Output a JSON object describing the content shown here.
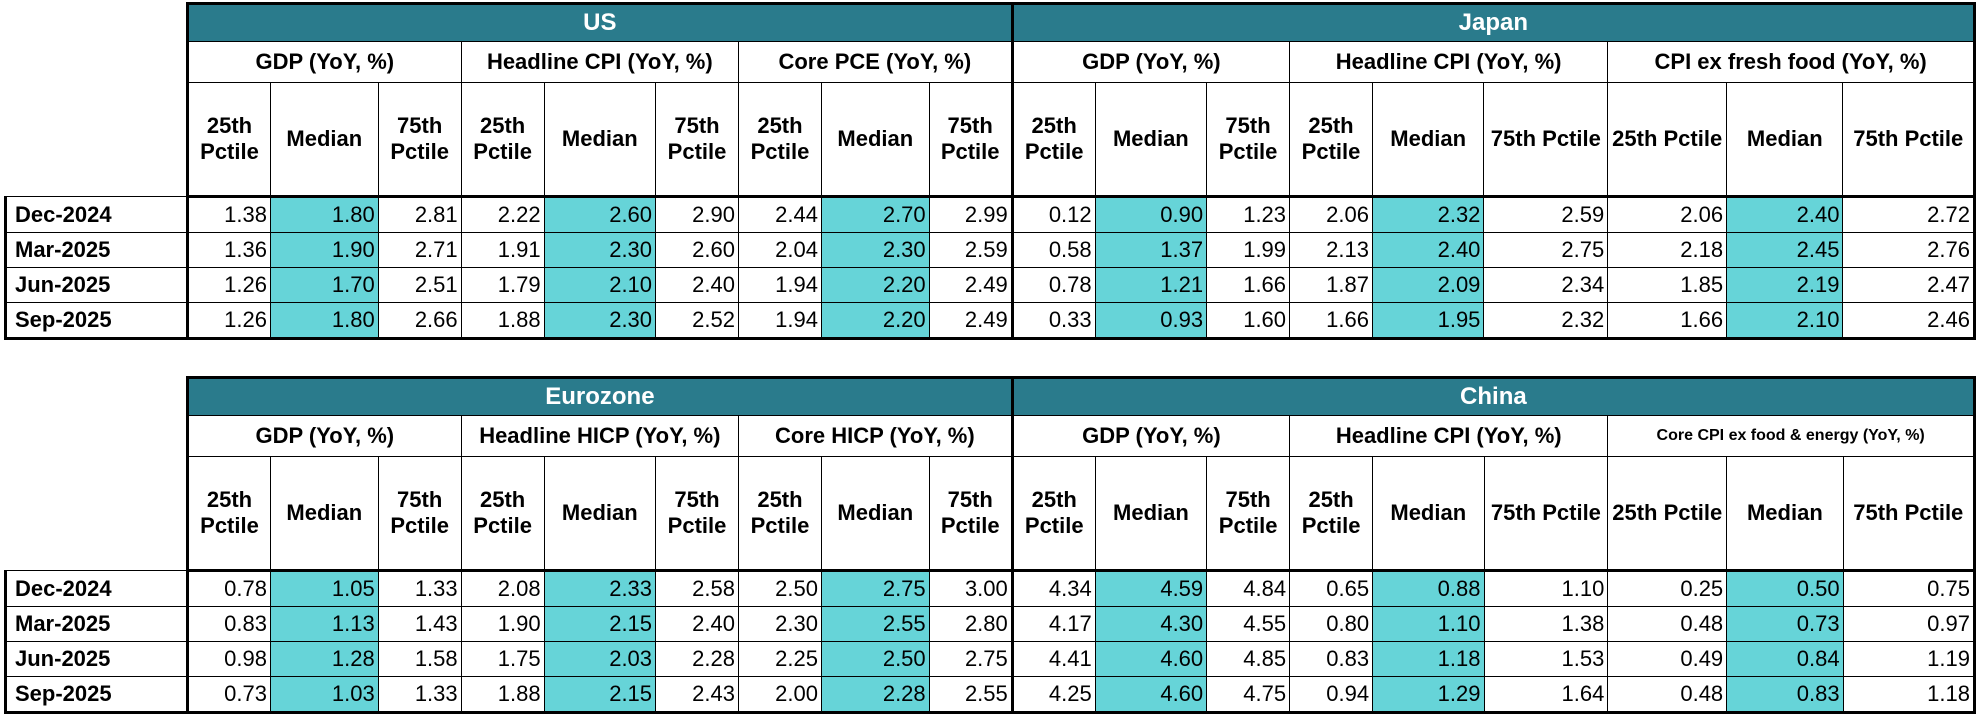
{
  "tables": [
    {
      "regions": [
        {
          "name": "US",
          "metrics": [
            "GDP (YoY, %)",
            "Headline CPI (YoY, %)",
            "Core PCE (YoY, %)"
          ]
        },
        {
          "name": "Japan",
          "metrics": [
            "GDP (YoY, %)",
            "Headline CPI (YoY, %)",
            "CPI ex fresh food (YoY, %)"
          ]
        }
      ],
      "sub_headers": [
        "25th Pctile",
        "Median",
        "75th Pctile"
      ],
      "rows": [
        {
          "label": "Dec-2024",
          "values": [
            "1.38",
            "1.80",
            "2.81",
            "2.22",
            "2.60",
            "2.90",
            "2.44",
            "2.70",
            "2.99",
            "0.12",
            "0.90",
            "1.23",
            "2.06",
            "2.32",
            "2.59",
            "2.06",
            "2.40",
            "2.72"
          ]
        },
        {
          "label": "Mar-2025",
          "values": [
            "1.36",
            "1.90",
            "2.71",
            "1.91",
            "2.30",
            "2.60",
            "2.04",
            "2.30",
            "2.59",
            "0.58",
            "1.37",
            "1.99",
            "2.13",
            "2.40",
            "2.75",
            "2.18",
            "2.45",
            "2.76"
          ]
        },
        {
          "label": "Jun-2025",
          "values": [
            "1.26",
            "1.70",
            "2.51",
            "1.79",
            "2.10",
            "2.40",
            "1.94",
            "2.20",
            "2.49",
            "0.78",
            "1.21",
            "1.66",
            "1.87",
            "2.09",
            "2.34",
            "1.85",
            "2.19",
            "2.47"
          ]
        },
        {
          "label": "Sep-2025",
          "values": [
            "1.26",
            "1.80",
            "2.66",
            "1.88",
            "2.30",
            "2.52",
            "1.94",
            "2.20",
            "2.49",
            "0.33",
            "0.93",
            "1.60",
            "1.66",
            "1.95",
            "2.32",
            "1.66",
            "2.10",
            "2.46"
          ]
        }
      ]
    },
    {
      "regions": [
        {
          "name": "Eurozone",
          "metrics": [
            "GDP (YoY, %)",
            "Headline HICP (YoY, %)",
            "Core HICP (YoY, %)"
          ]
        },
        {
          "name": "China",
          "metrics": [
            "GDP (YoY, %)",
            "Headline CPI (YoY, %)",
            "Core CPI ex food & energy (YoY, %)"
          ]
        }
      ],
      "sub_headers": [
        "25th Pctile",
        "Median",
        "75th Pctile"
      ],
      "rows": [
        {
          "label": "Dec-2024",
          "values": [
            "0.78",
            "1.05",
            "1.33",
            "2.08",
            "2.33",
            "2.58",
            "2.50",
            "2.75",
            "3.00",
            "4.34",
            "4.59",
            "4.84",
            "0.65",
            "0.88",
            "1.10",
            "0.25",
            "0.50",
            "0.75"
          ]
        },
        {
          "label": "Mar-2025",
          "values": [
            "0.83",
            "1.13",
            "1.43",
            "1.90",
            "2.15",
            "2.40",
            "2.30",
            "2.55",
            "2.80",
            "4.17",
            "4.30",
            "4.55",
            "0.80",
            "1.10",
            "1.38",
            "0.48",
            "0.73",
            "0.97"
          ]
        },
        {
          "label": "Jun-2025",
          "values": [
            "0.98",
            "1.28",
            "1.58",
            "1.75",
            "2.03",
            "2.28",
            "2.25",
            "2.50",
            "2.75",
            "4.41",
            "4.60",
            "4.85",
            "0.83",
            "1.18",
            "1.53",
            "0.49",
            "0.84",
            "1.19"
          ]
        },
        {
          "label": "Sep-2025",
          "values": [
            "0.73",
            "1.03",
            "1.33",
            "1.88",
            "2.15",
            "2.43",
            "2.00",
            "2.28",
            "2.55",
            "4.25",
            "4.60",
            "4.75",
            "0.94",
            "1.29",
            "1.64",
            "0.48",
            "0.83",
            "1.18"
          ]
        }
      ]
    }
  ],
  "colors": {
    "header_bg": "#2a7b8c",
    "median_bg": "#66d4d8"
  }
}
